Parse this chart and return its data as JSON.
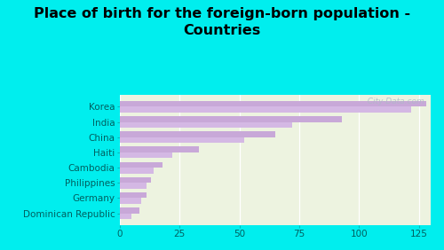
{
  "title": "Place of birth for the foreign-born population -\nCountries",
  "categories": [
    "Korea",
    "India",
    "China",
    "Haiti",
    "Cambodia",
    "Philippines",
    "Germany",
    "Dominican Republic"
  ],
  "values1": [
    128,
    93,
    65,
    33,
    18,
    13,
    11,
    8
  ],
  "values2": [
    122,
    72,
    52,
    22,
    14,
    11,
    9,
    5
  ],
  "bar_color1": "#c8a8d8",
  "bar_color2": "#d4b8e4",
  "background_outer": "#00eeee",
  "background_inner": "#edf3e0",
  "xlim": [
    0,
    130
  ],
  "xticks": [
    0,
    25,
    50,
    75,
    100,
    125
  ],
  "watermark": "  City-Data.com",
  "title_fontsize": 11.5,
  "label_fontsize": 7.5
}
